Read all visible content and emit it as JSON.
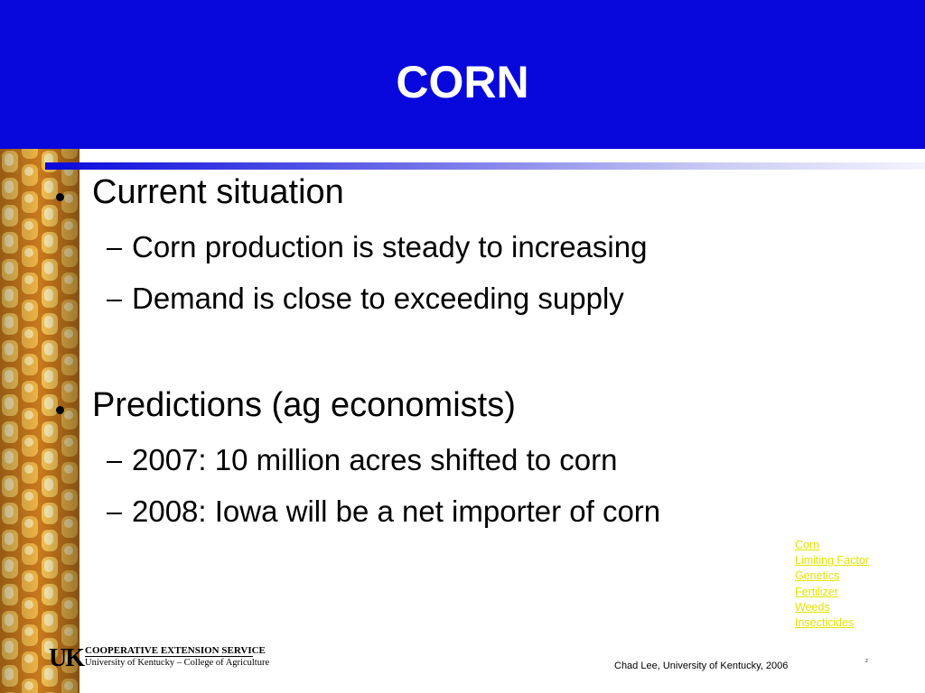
{
  "title": "CORN",
  "bullets": [
    {
      "text": "Current situation",
      "sub": [
        "Corn production is steady to increasing",
        "Demand is close to exceeding supply"
      ]
    },
    {
      "text": "Predictions (ag economists)",
      "sub": [
        "2007: 10 million acres shifted to corn",
        "2008: Iowa will be a net importer of corn"
      ]
    }
  ],
  "nav_links": [
    "Corn",
    "Limiting Factor",
    "Genetics",
    "Fertilizer",
    "Weeds",
    "Insecticides"
  ],
  "logo": {
    "mark": "UK",
    "line1": "COOPERATIVE EXTENSION SERVICE",
    "line2": "University of Kentucky – College of Agriculture"
  },
  "footer": "Chad Lee, University of Kentucky, 2006",
  "slide_number": "2"
}
